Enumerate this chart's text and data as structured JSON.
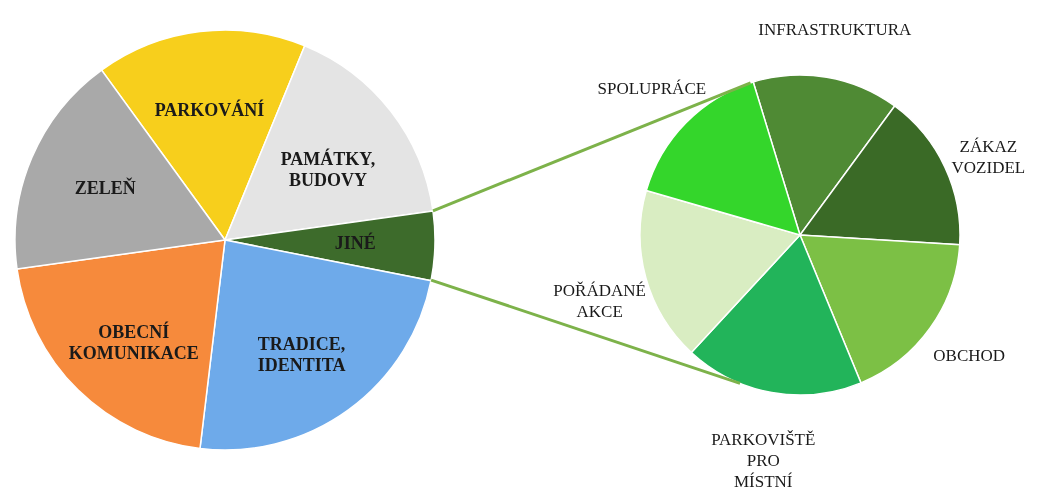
{
  "chart_data": [
    {
      "type": "pie",
      "categories": [
        "PARKOVÁNÍ",
        "PAMÁTKY, BUDOVY",
        "JINÉ",
        "TRADICE, IDENTITA",
        "OBECNÍ KOMUNIKACE",
        "ZELEŇ"
      ],
      "values": [
        16.2,
        16.6,
        5.3,
        23.8,
        20.9,
        17.2
      ],
      "colors": [
        "#f7cf1c",
        "#e4e4e4",
        "#3d6b2b",
        "#6eaaea",
        "#f68a3c",
        "#a9a9a9"
      ]
    },
    {
      "type": "pie",
      "categories": [
        "INFRASTRUKTURA",
        "ZÁKAZ VOZIDEL",
        "OBCHOD",
        "PARKOVIŠTĚ PRO MÍSTNÍ",
        "POŘÁDANÉ AKCE",
        "SPOLUPRÁCE"
      ],
      "values": [
        14.8,
        15.9,
        17.8,
        18.1,
        17.6,
        15.8
      ],
      "colors": [
        "#4f8a34",
        "#3a6a26",
        "#7cc045",
        "#22b45a",
        "#d9edc2",
        "#34d62b"
      ]
    }
  ]
}
